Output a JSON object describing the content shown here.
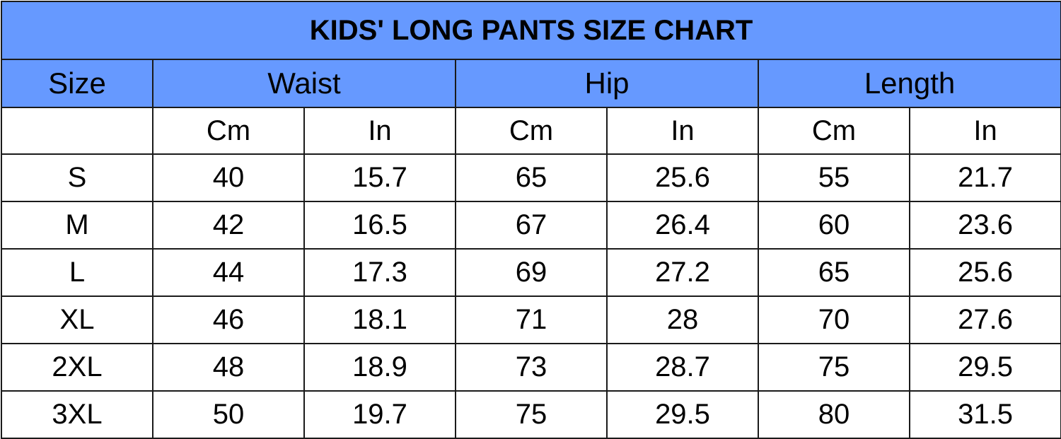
{
  "title": "KIDS' LONG PANTS SIZE CHART",
  "headers": {
    "size": "Size",
    "groups": [
      "Waist",
      "Hip",
      "Length"
    ],
    "units": [
      "Cm",
      "In",
      "Cm",
      "In",
      "Cm",
      "In"
    ]
  },
  "rows": [
    {
      "size": "S",
      "values": [
        "40",
        "15.7",
        "65",
        "25.6",
        "55",
        "21.7"
      ]
    },
    {
      "size": "M",
      "values": [
        "42",
        "16.5",
        "67",
        "26.4",
        "60",
        "23.6"
      ]
    },
    {
      "size": "L",
      "values": [
        "44",
        "17.3",
        "69",
        "27.2",
        "65",
        "25.6"
      ]
    },
    {
      "size": "XL",
      "values": [
        "46",
        "18.1",
        "71",
        "28",
        "70",
        "27.6"
      ]
    },
    {
      "size": "2XL",
      "values": [
        "48",
        "18.9",
        "73",
        "28.7",
        "75",
        "29.5"
      ]
    },
    {
      "size": "3XL",
      "values": [
        "50",
        "19.7",
        "75",
        "29.5",
        "80",
        "31.5"
      ]
    }
  ],
  "colors": {
    "header_background": "#6699ff",
    "border": "#1a1a1a",
    "body_background": "#ffffff"
  }
}
